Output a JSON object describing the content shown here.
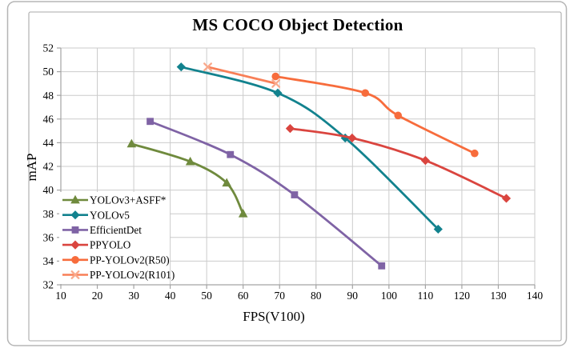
{
  "figure": {
    "title": "MS COCO Object Detection",
    "xlabel": "FPS(V100)",
    "ylabel": "mAP"
  },
  "chart_data": {
    "type": "line",
    "title": "MS COCO Object Detection",
    "xlabel": "FPS(V100)",
    "ylabel": "mAP",
    "xlim": [
      10,
      140
    ],
    "ylim": [
      32,
      52
    ],
    "xticks": [
      10,
      20,
      30,
      40,
      50,
      60,
      70,
      80,
      90,
      100,
      110,
      120,
      130,
      140
    ],
    "yticks": [
      32,
      34,
      36,
      38,
      40,
      42,
      44,
      46,
      48,
      50,
      52
    ],
    "grid": true,
    "smooth": true,
    "legend_position": "lower-left-inside",
    "style": {
      "grid_color": "#CBCBCB",
      "axis_color": "#A3A3A3",
      "frame_color": "#A9A9A9",
      "outer_border_color": "#B5B5B5",
      "background": "#FFFFFF",
      "text_color": "#000000"
    },
    "series": [
      {
        "name": "YOLOv3+ASFF*",
        "color": "#6F8A3D",
        "marker": "triangle",
        "points": [
          [
            29.4,
            43.9
          ],
          [
            45.5,
            42.4
          ],
          [
            55.5,
            40.6
          ],
          [
            60,
            38.0
          ]
        ]
      },
      {
        "name": "YOLOv5",
        "color": "#12828E",
        "marker": "diamond",
        "points": [
          [
            43,
            50.4
          ],
          [
            69.5,
            48.2
          ],
          [
            88,
            44.4
          ],
          [
            113.5,
            36.7
          ]
        ]
      },
      {
        "name": "EfficientDet",
        "color": "#7F63A5",
        "marker": "square",
        "points": [
          [
            34.5,
            45.8
          ],
          [
            56.5,
            43.0
          ],
          [
            74.1,
            39.6
          ],
          [
            98,
            33.6
          ]
        ]
      },
      {
        "name": "PPYOLO",
        "color": "#DA453F",
        "marker": "diamond",
        "points": [
          [
            72.9,
            45.2
          ],
          [
            89.9,
            44.4
          ],
          [
            110,
            42.5
          ],
          [
            132.2,
            39.3
          ]
        ]
      },
      {
        "name": "PP-YOLOv2(R50)",
        "color": "#F76C3C",
        "marker": "circle",
        "points": [
          [
            68.9,
            49.6
          ],
          [
            93.5,
            48.2
          ],
          [
            102.5,
            46.3
          ],
          [
            123.5,
            43.1
          ]
        ]
      },
      {
        "name": "PP-YOLOv2(R101)",
        "color": "#F87F57",
        "marker": "x",
        "marker_color": "#F9A98C",
        "points": [
          [
            50.3,
            50.4
          ],
          [
            69,
            49.0
          ]
        ]
      }
    ]
  }
}
